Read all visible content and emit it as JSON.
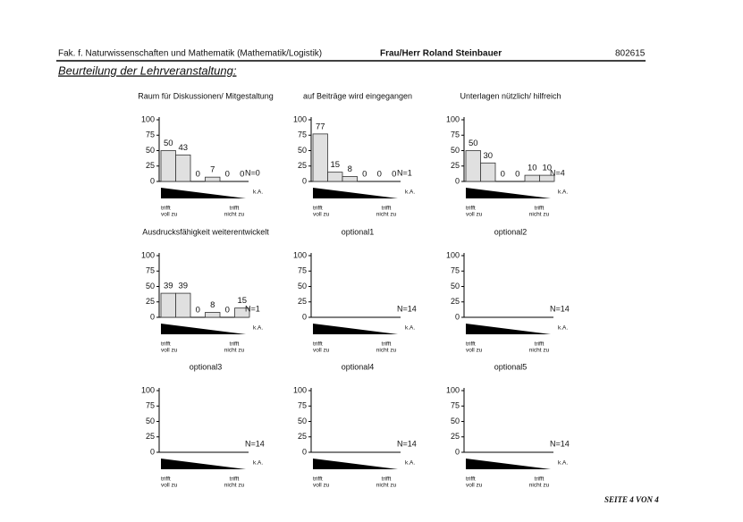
{
  "header": {
    "left": "Fak. f. Naturwissenschaften und Mathematik (Mathematik/Logistik)",
    "center": "Frau/Herr Roland Steinbauer",
    "right": "802615"
  },
  "heading": "Beurteilung der Lehrveranstaltung:",
  "footer": "SEITE 4 VON 4",
  "chart_data": [
    {
      "type": "bar",
      "title": "Raum für Diskussionen/ Mitgestaltung",
      "categories": [
        null,
        null,
        null,
        null,
        null,
        null
      ],
      "values": [
        50,
        43,
        0,
        7,
        0,
        0
      ],
      "ylim": [
        0,
        100
      ],
      "yticks": [
        0,
        25,
        50,
        75,
        100
      ],
      "n_label": "N=0",
      "na_label": "k.A.",
      "left_label": [
        "trifft",
        "voll zu"
      ],
      "right_label": [
        "trifft",
        "nicht zu"
      ],
      "color": "#e0e0e0"
    },
    {
      "type": "bar",
      "title": "auf Beiträge wird eingegangen",
      "categories": [
        null,
        null,
        null,
        null,
        null,
        null
      ],
      "values": [
        77,
        15,
        8,
        0,
        0,
        0
      ],
      "ylim": [
        0,
        100
      ],
      "yticks": [
        0,
        25,
        50,
        75,
        100
      ],
      "n_label": "N=1",
      "na_label": "k.A.",
      "left_label": [
        "trifft",
        "voll zu"
      ],
      "right_label": [
        "trifft",
        "nicht zu"
      ],
      "color": "#e0e0e0"
    },
    {
      "type": "bar",
      "title": "Unterlagen nützlich/ hilfreich",
      "categories": [
        null,
        null,
        null,
        null,
        null,
        null
      ],
      "values": [
        50,
        30,
        0,
        0,
        10,
        10
      ],
      "ylim": [
        0,
        100
      ],
      "yticks": [
        0,
        25,
        50,
        75,
        100
      ],
      "n_label": "N=4",
      "na_label": "k.A.",
      "left_label": [
        "trifft",
        "voll zu"
      ],
      "right_label": [
        "trifft",
        "nicht zu"
      ],
      "color": "#e0e0e0"
    },
    {
      "type": "bar",
      "title": "Ausdrucksfähigkeit weiterentwickelt",
      "categories": [
        null,
        null,
        null,
        null,
        null,
        null
      ],
      "values": [
        39,
        39,
        0,
        8,
        0,
        15
      ],
      "ylim": [
        0,
        100
      ],
      "yticks": [
        0,
        25,
        50,
        75,
        100
      ],
      "n_label": "N=1",
      "na_label": "k.A.",
      "left_label": [
        "trifft",
        "voll zu"
      ],
      "right_label": [
        "trifft",
        "nicht zu"
      ],
      "color": "#e0e0e0"
    },
    {
      "type": "bar",
      "title": "optional1",
      "values": [],
      "ylim": [
        0,
        100
      ],
      "yticks": [
        0,
        25,
        50,
        75,
        100
      ],
      "n_label": "N=14",
      "na_label": "k.A.",
      "left_label": [
        "trifft",
        "voll zu"
      ],
      "right_label": [
        "trifft",
        "nicht zu"
      ],
      "color": "#e0e0e0"
    },
    {
      "type": "bar",
      "title": "optional2",
      "values": [],
      "ylim": [
        0,
        100
      ],
      "yticks": [
        0,
        25,
        50,
        75,
        100
      ],
      "n_label": "N=14",
      "na_label": "k.A.",
      "left_label": [
        "trifft",
        "voll zu"
      ],
      "right_label": [
        "trifft",
        "nicht zu"
      ],
      "color": "#e0e0e0"
    },
    {
      "type": "bar",
      "title": "optional3",
      "values": [],
      "ylim": [
        0,
        100
      ],
      "yticks": [
        0,
        25,
        50,
        75,
        100
      ],
      "n_label": "N=14",
      "na_label": "k.A.",
      "left_label": [
        "trifft",
        "voll zu"
      ],
      "right_label": [
        "trifft",
        "nicht zu"
      ],
      "color": "#e0e0e0"
    },
    {
      "type": "bar",
      "title": "optional4",
      "values": [],
      "ylim": [
        0,
        100
      ],
      "yticks": [
        0,
        25,
        50,
        75,
        100
      ],
      "n_label": "N=14",
      "na_label": "k.A.",
      "left_label": [
        "trifft",
        "voll zu"
      ],
      "right_label": [
        "trifft",
        "nicht zu"
      ],
      "color": "#e0e0e0"
    },
    {
      "type": "bar",
      "title": "optional5",
      "values": [],
      "ylim": [
        0,
        100
      ],
      "yticks": [
        0,
        25,
        50,
        75,
        100
      ],
      "n_label": "N=14",
      "na_label": "k.A.",
      "left_label": [
        "trifft",
        "voll zu"
      ],
      "right_label": [
        "trifft",
        "nicht zu"
      ],
      "color": "#e0e0e0"
    }
  ]
}
